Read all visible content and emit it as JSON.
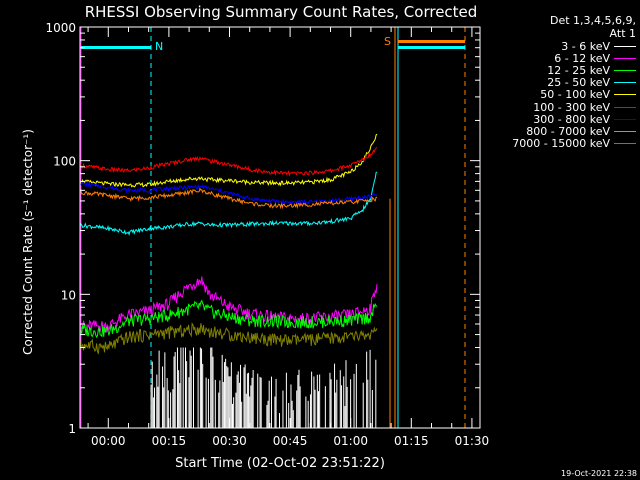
{
  "chart_data": {
    "type": "line",
    "title": "RHESSI Observing Summary Count Rates, Corrected",
    "xlabel": "Start Time (02-Oct-02 23:51:22)",
    "ylabel": "Corrected Count Rate (s⁻¹ detector⁻¹)",
    "yscale": "log",
    "ylim": [
      1,
      1000
    ],
    "xlim": [
      -7,
      92
    ],
    "x_ticks": [
      {
        "min": 0,
        "label": "00:00"
      },
      {
        "min": 15,
        "label": "00:15"
      },
      {
        "min": 30,
        "label": "00:30"
      },
      {
        "min": 45,
        "label": "00:45"
      },
      {
        "min": 60,
        "label": "01:00"
      },
      {
        "min": 75,
        "label": "01:15"
      },
      {
        "min": 90,
        "label": "01:30"
      }
    ],
    "y_ticks": [
      {
        "v": 1,
        "label": "1"
      },
      {
        "v": 10,
        "label": "10"
      },
      {
        "v": 100,
        "label": "100"
      },
      {
        "v": 1000,
        "label": "1000"
      }
    ],
    "legend_header": [
      "Det 1,3,4,5,6,9,",
      "Att 1"
    ],
    "legend_placement": "right",
    "x_min": [
      -7,
      0,
      5,
      10,
      15,
      20,
      23,
      25,
      30,
      35,
      40,
      45,
      50,
      55,
      60,
      63,
      65,
      66.5
    ],
    "series": [
      {
        "name": "3 - 6 keV",
        "color": "#ffffff",
        "values": [
          null,
          null,
          null,
          2.2,
          2.6,
          3.0,
          3.2,
          2.8,
          2.2,
          1.9,
          1.8,
          1.7,
          1.8,
          2.0,
          2.1,
          2.3,
          2.5,
          3.0
        ]
      },
      {
        "name": "6 - 12 keV",
        "color": "#ff00ff",
        "values": [
          5.8,
          5.8,
          7.0,
          7.5,
          8.5,
          11.5,
          13.0,
          10.0,
          8.0,
          7.2,
          6.8,
          6.6,
          6.6,
          6.8,
          7.0,
          7.5,
          8.0,
          12.0
        ]
      },
      {
        "name": "12 - 25 keV",
        "color": "#00ff00",
        "values": [
          5.4,
          5.3,
          6.3,
          6.6,
          7.0,
          7.8,
          8.2,
          7.5,
          6.8,
          6.4,
          6.3,
          6.2,
          6.2,
          6.3,
          6.4,
          6.6,
          6.8,
          8.5
        ]
      },
      {
        "name": "25 - 50 keV",
        "color": "#00ffff",
        "values": [
          33,
          31,
          29,
          31,
          32,
          33.5,
          34,
          33,
          33,
          33.5,
          34,
          34,
          34,
          35,
          37,
          43,
          52,
          85
        ]
      },
      {
        "name": "50 - 100 keV",
        "color": "#ffff00",
        "values": [
          70,
          67,
          66,
          66,
          70,
          73,
          74,
          72,
          71,
          69,
          68,
          68,
          69,
          72,
          82,
          100,
          125,
          160
        ]
      },
      {
        "name": "100 - 300 keV",
        "color": "#ff0000",
        "values": [
          92,
          86,
          84,
          88,
          95,
          102,
          105,
          100,
          93,
          86,
          82,
          80,
          81,
          84,
          92,
          102,
          112,
          125
        ]
      },
      {
        "name": "300 - 800 keV",
        "color": "#0000ff",
        "values": [
          68,
          63,
          60,
          60,
          62,
          63,
          64,
          62,
          57,
          52,
          50,
          49,
          49,
          50,
          52,
          53,
          54,
          56
        ]
      },
      {
        "name": "800 - 7000 keV",
        "color": "#ff8000",
        "values": [
          58,
          55,
          52,
          53,
          55,
          58,
          60,
          57,
          52,
          48,
          46,
          46,
          47,
          48,
          49,
          50,
          51,
          52
        ]
      },
      {
        "name": "7000 - 15000 keV",
        "color": "#808000",
        "values": [
          4.2,
          4.0,
          4.8,
          5.0,
          5.2,
          5.4,
          5.6,
          5.3,
          5.0,
          4.8,
          4.6,
          4.5,
          4.6,
          4.7,
          4.8,
          4.9,
          5.0,
          5.1
        ]
      }
    ],
    "annotations": [
      {
        "text": "N",
        "color": "#00ffff"
      },
      {
        "text": "S",
        "color": "#ff8000"
      }
    ]
  },
  "timestamp": "19-Oct-2021 22:38"
}
